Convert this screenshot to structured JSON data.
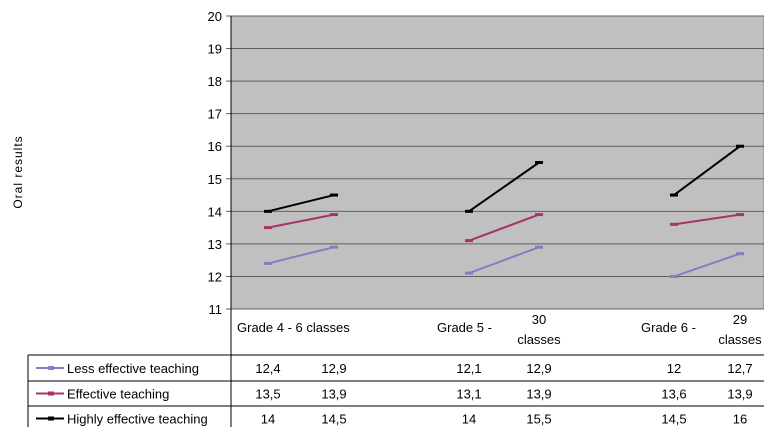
{
  "chart_data": {
    "type": "line",
    "title": "",
    "ylabel": "Oral results",
    "xlabel": "",
    "ylim": [
      11,
      20
    ],
    "yticks": [
      11,
      12,
      13,
      14,
      15,
      16,
      17,
      18,
      19,
      20
    ],
    "grid": true,
    "plot_background": "#c0c0c0",
    "legend_placement": "table-left",
    "categories": [
      {
        "label": "Grade 4 - 6 classes",
        "lines": [
          "Grade 4 - 6 classes"
        ]
      },
      {
        "label": "Grade 5 - 30 classes",
        "lines": [
          "Grade 5 -",
          "30",
          "classes"
        ]
      },
      {
        "label": "Grade 6 - 29 classes",
        "lines": [
          "Grade 6 -",
          "29",
          "classes"
        ]
      }
    ],
    "series": [
      {
        "name": "Less effective teaching",
        "color": "#8080c0",
        "values": [
          [
            12.4,
            12.9
          ],
          [
            12.1,
            12.9
          ],
          [
            12,
            12.7
          ]
        ],
        "labels": [
          [
            "12,4",
            "12,9"
          ],
          [
            "12,1",
            "12,9"
          ],
          [
            "12",
            "12,7"
          ]
        ]
      },
      {
        "name": "Effective teaching",
        "color": "#a8336c",
        "values": [
          [
            13.5,
            13.9
          ],
          [
            13.1,
            13.9
          ],
          [
            13.6,
            13.9
          ]
        ],
        "labels": [
          [
            "13,5",
            "13,9"
          ],
          [
            "13,1",
            "13,9"
          ],
          [
            "13,6",
            "13,9"
          ]
        ]
      },
      {
        "name": "Highly effective teaching",
        "color": "#000000",
        "values": [
          [
            14,
            14.5
          ],
          [
            14,
            15.5
          ],
          [
            14.5,
            16
          ]
        ],
        "labels": [
          [
            "14",
            "14,5"
          ],
          [
            "14",
            "15,5"
          ],
          [
            "14,5",
            "16"
          ]
        ]
      }
    ]
  }
}
